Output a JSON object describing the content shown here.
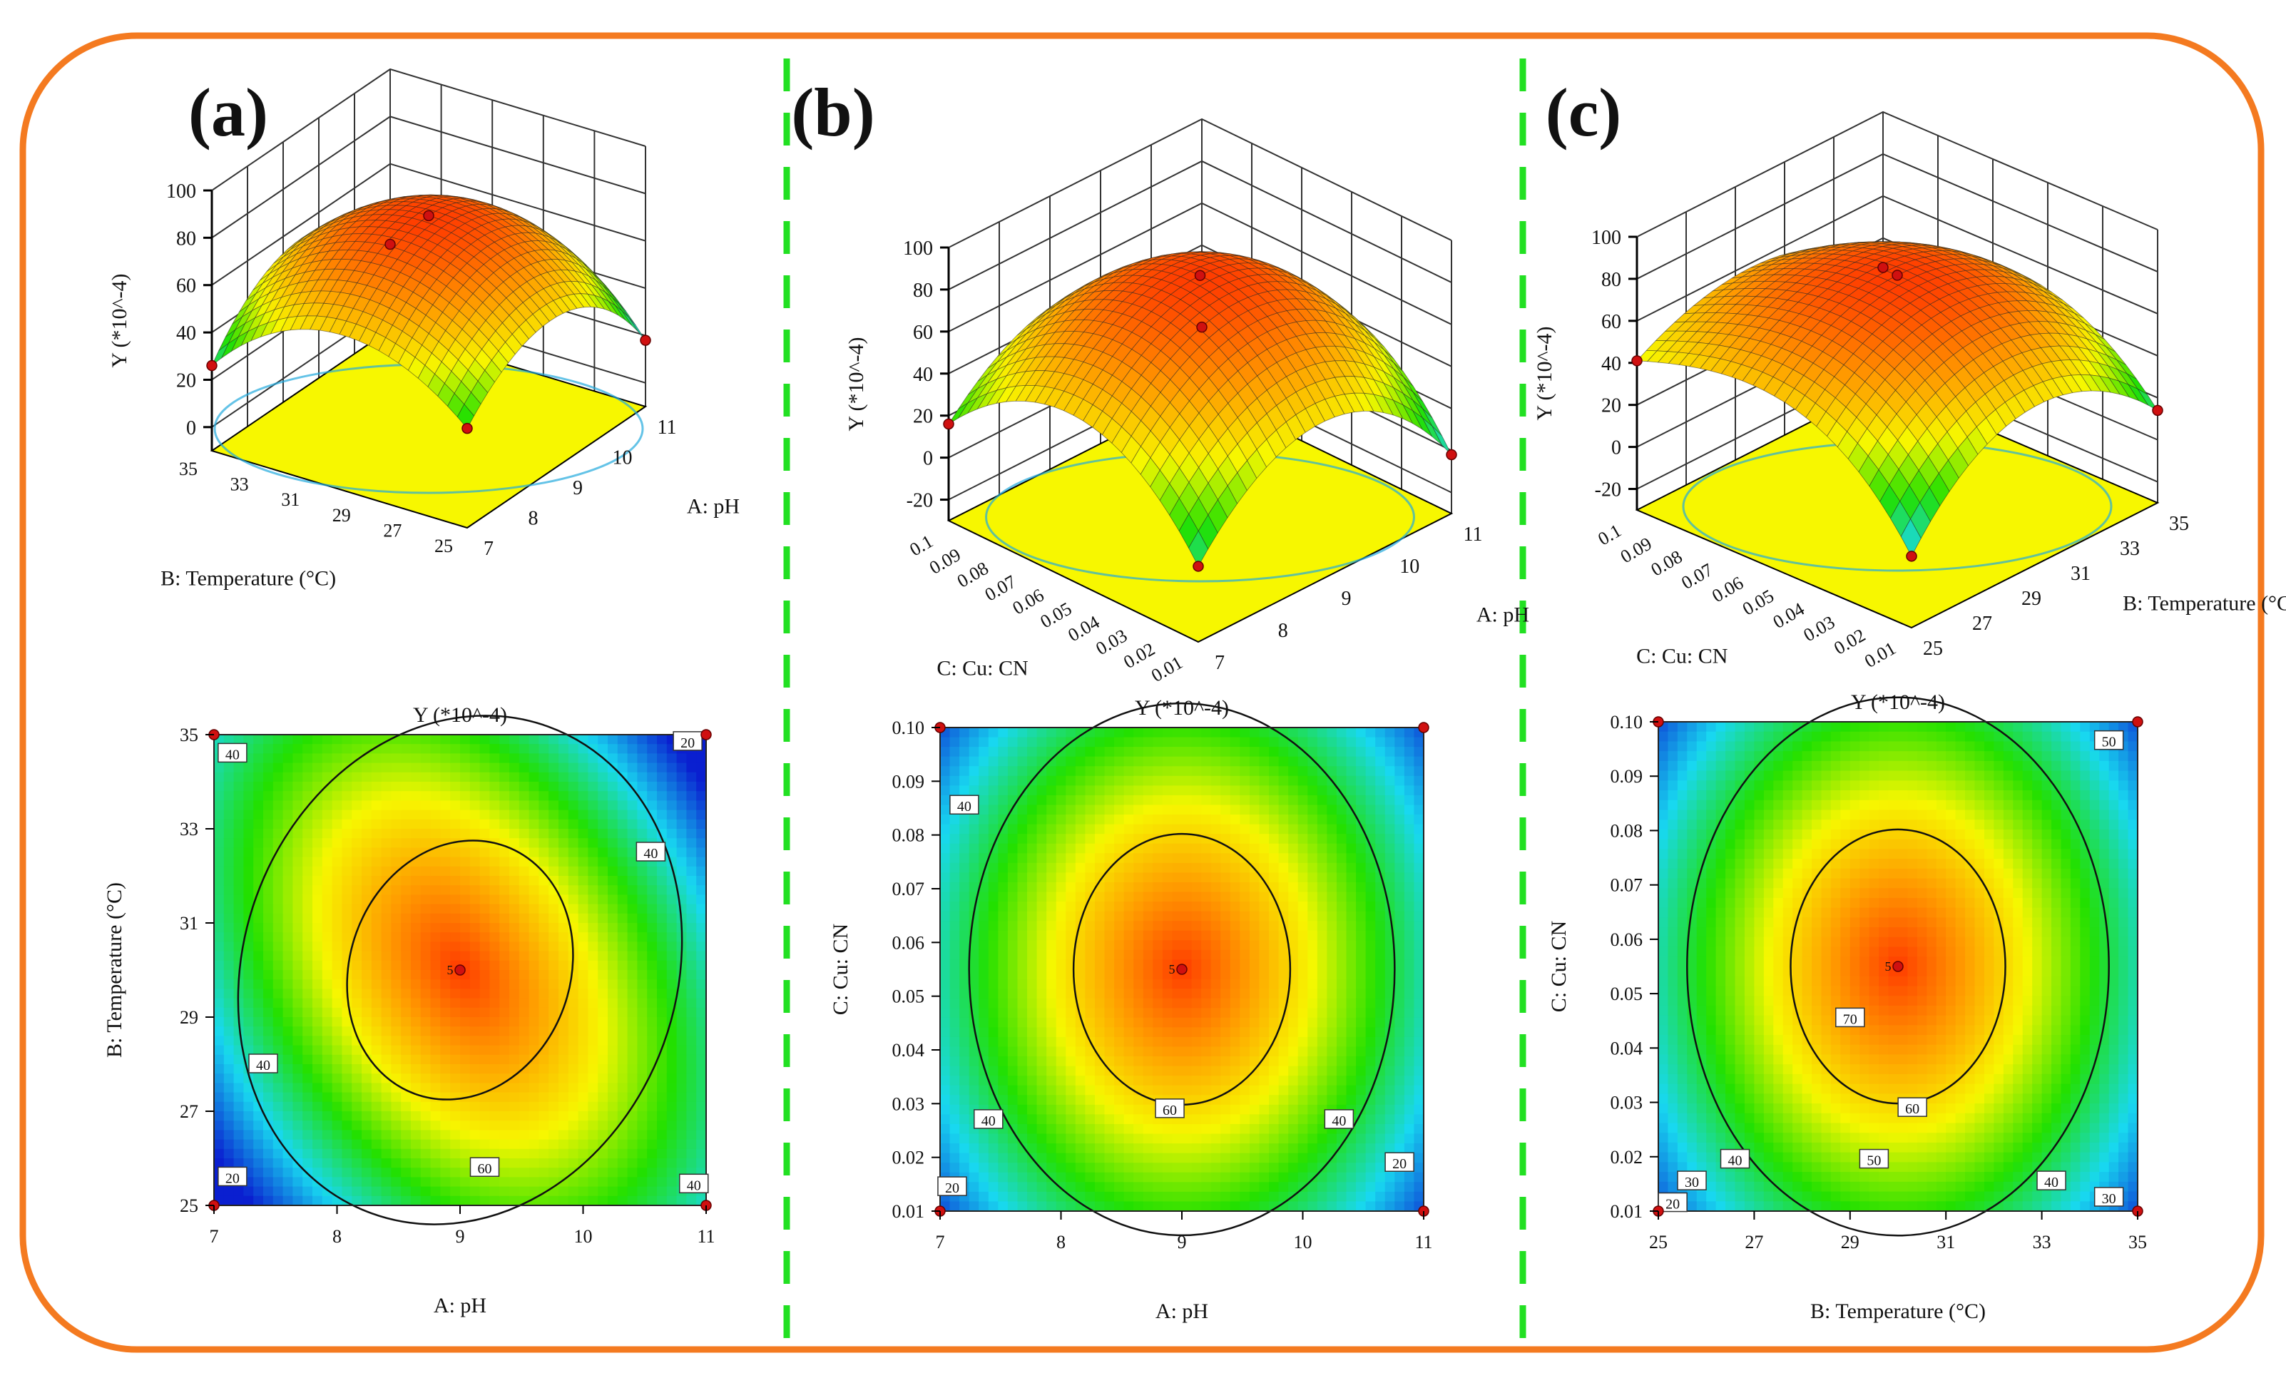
{
  "figure": {
    "frame_color": "#f47a20",
    "divider_color": "#22e022"
  },
  "colormap": [
    "#0a1fd0",
    "#18d8f0",
    "#22e000",
    "#f7f700",
    "#ff9a00",
    "#ff3c00"
  ],
  "panels": [
    {
      "id": "a",
      "label": "(a)",
      "surface": {
        "zlabel": "Y (*10^-4)",
        "zticks": [
          "0",
          "20",
          "40",
          "60",
          "80",
          "100"
        ],
        "zlim": [
          -10,
          100
        ],
        "x_name": "A: pH",
        "x_ticks": [
          "7",
          "8",
          "9",
          "10",
          "11"
        ],
        "y_name": "B: Temperature (°C)",
        "y_ticks": [
          "25",
          "27",
          "29",
          "31",
          "33",
          "35"
        ],
        "corner_values": {
          "x_min_y_min": 36,
          "x_min_y_max": 30,
          "x_max_y_min": 22,
          "x_max_y_max": 30
        },
        "peak_value": 80,
        "low_value": 5
      },
      "contour": {
        "title": "Y (*10^-4)",
        "xlabel": "A: pH",
        "ylabel": "B: Temperature (°C)",
        "x_ticks": [
          "7",
          "8",
          "9",
          "10",
          "11"
        ],
        "y_ticks": [
          "25",
          "27",
          "29",
          "31",
          "33",
          "35"
        ],
        "xlim": [
          7,
          11
        ],
        "ylim": [
          25,
          35
        ],
        "center": [
          9,
          30
        ],
        "center_label": "5",
        "level_labels": [
          {
            "text": "40",
            "x": 7.15,
            "y": 34.6
          },
          {
            "text": "20",
            "x": 10.85,
            "y": 34.85
          },
          {
            "text": "40",
            "x": 10.55,
            "y": 32.5
          },
          {
            "text": "40",
            "x": 7.4,
            "y": 28.0
          },
          {
            "text": "60",
            "x": 9.2,
            "y": 25.8
          },
          {
            "text": "20",
            "x": 7.15,
            "y": 25.6
          },
          {
            "text": "40",
            "x": 10.9,
            "y": 25.45
          }
        ]
      }
    },
    {
      "id": "b",
      "label": "(b)",
      "surface": {
        "zlabel": "Y (*10^-4)",
        "zticks": [
          "-20",
          "0",
          "20",
          "40",
          "60",
          "80",
          "100"
        ],
        "zlim": [
          -30,
          100
        ],
        "x_name": "A: pH",
        "x_ticks": [
          "7",
          "8",
          "9",
          "10",
          "11"
        ],
        "y_name": "C: Cu:  CN",
        "y_ticks": [
          "0.01",
          "0.02",
          "0.03",
          "0.04",
          "0.05",
          "0.06",
          "0.07",
          "0.08",
          "0.09",
          "0.1"
        ],
        "corner_values": {
          "x_min_y_min": 10,
          "x_min_y_max": 20,
          "x_max_y_min": 2,
          "x_max_y_max": 5
        },
        "peak_value": 85,
        "low_value": -25
      },
      "contour": {
        "title": "Y (*10^-4)",
        "xlabel": "A: pH",
        "ylabel": "C: Cu:  CN",
        "x_ticks": [
          "7",
          "8",
          "9",
          "10",
          "11"
        ],
        "y_ticks": [
          "0.01",
          "0.02",
          "0.03",
          "0.04",
          "0.05",
          "0.06",
          "0.07",
          "0.08",
          "0.09",
          "0.10"
        ],
        "xlim": [
          7,
          11
        ],
        "ylim": [
          0.01,
          0.1
        ],
        "center": [
          9,
          0.055
        ],
        "center_label": "5",
        "level_labels": [
          {
            "text": "40",
            "x": 7.2,
            "y": 0.0855
          },
          {
            "text": "40",
            "x": 7.4,
            "y": 0.027
          },
          {
            "text": "60",
            "x": 8.9,
            "y": 0.029
          },
          {
            "text": "40",
            "x": 10.3,
            "y": 0.027
          },
          {
            "text": "20",
            "x": 10.8,
            "y": 0.019
          },
          {
            "text": "20",
            "x": 7.1,
            "y": 0.0145
          }
        ]
      }
    },
    {
      "id": "c",
      "label": "(c)",
      "surface": {
        "zlabel": "Y (*10^-4)",
        "zticks": [
          "-20",
          "0",
          "20",
          "40",
          "60",
          "80",
          "100"
        ],
        "zlim": [
          -30,
          100
        ],
        "x_name": "B: Temperature (°C)",
        "x_ticks": [
          "25",
          "27",
          "29",
          "31",
          "33",
          "35"
        ],
        "y_name": "C: Cu:  CN",
        "y_ticks": [
          "0.01",
          "0.02",
          "0.03",
          "0.04",
          "0.05",
          "0.06",
          "0.07",
          "0.08",
          "0.09",
          "0.1"
        ],
        "corner_values": {
          "x_min_y_min": 8,
          "x_min_y_max": 45,
          "x_max_y_min": 18,
          "x_max_y_max": 30
        },
        "peak_value": 80,
        "low_value": -12
      },
      "contour": {
        "title": "Y (*10^-4)",
        "xlabel": "B: Temperature (°C)",
        "ylabel": "C: Cu:  CN",
        "x_ticks": [
          "25",
          "27",
          "29",
          "31",
          "33",
          "35"
        ],
        "y_ticks": [
          "0.01",
          "0.02",
          "0.03",
          "0.04",
          "0.05",
          "0.06",
          "0.07",
          "0.08",
          "0.09",
          "0.10"
        ],
        "xlim": [
          25,
          35
        ],
        "ylim": [
          0.01,
          0.1
        ],
        "center": [
          30,
          0.055
        ],
        "center_label": "5",
        "level_labels": [
          {
            "text": "50",
            "x": 34.4,
            "y": 0.0965
          },
          {
            "text": "70",
            "x": 29.0,
            "y": 0.0455
          },
          {
            "text": "60",
            "x": 30.3,
            "y": 0.029
          },
          {
            "text": "50",
            "x": 29.5,
            "y": 0.0195
          },
          {
            "text": "40",
            "x": 26.6,
            "y": 0.0195
          },
          {
            "text": "30",
            "x": 25.7,
            "y": 0.0155
          },
          {
            "text": "20",
            "x": 25.3,
            "y": 0.0115
          },
          {
            "text": "40",
            "x": 33.2,
            "y": 0.0155
          },
          {
            "text": "30",
            "x": 34.4,
            "y": 0.0125
          }
        ]
      }
    }
  ]
}
